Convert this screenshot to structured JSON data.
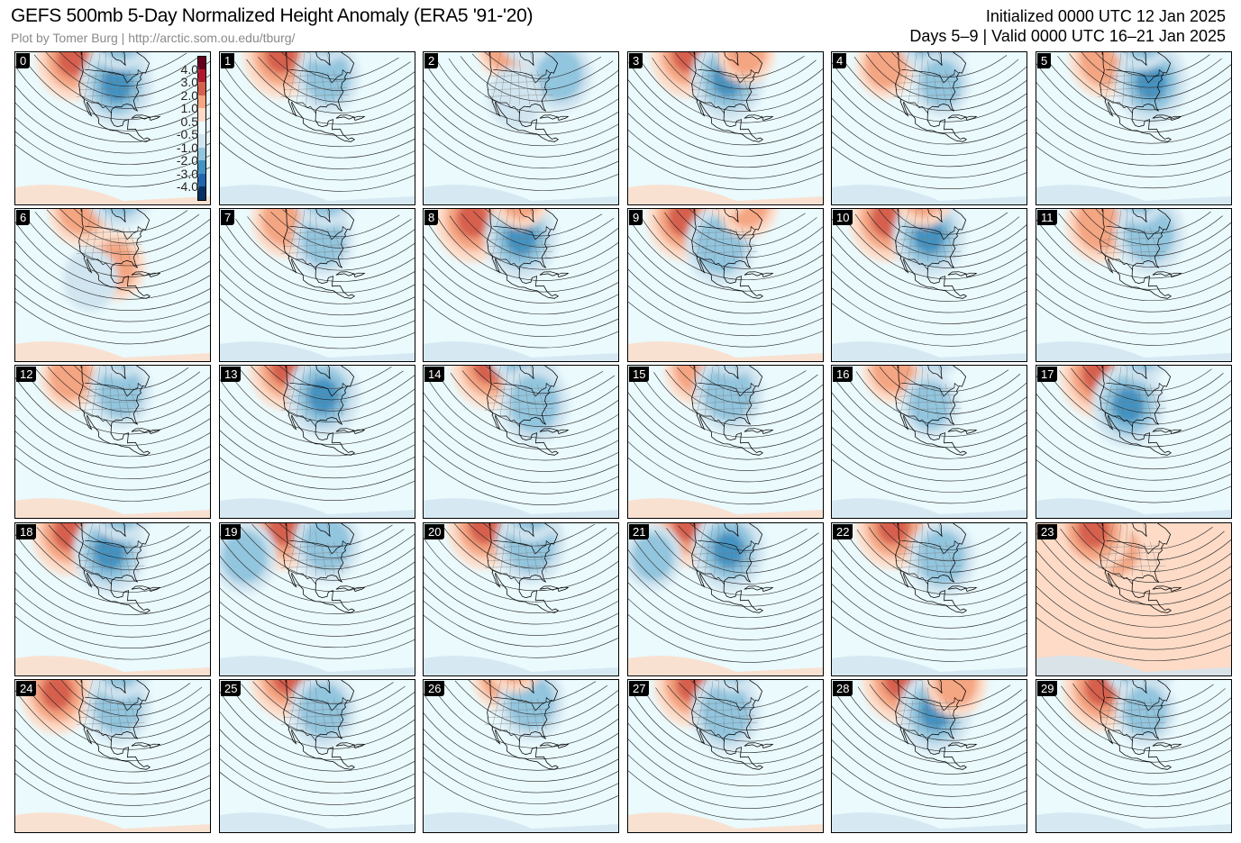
{
  "header": {
    "title": "GEFS 500mb 5-Day Normalized Height Anomaly (ERA5 '91-'20)",
    "credit": "Plot by Tomer Burg | http://arctic.som.ou.edu/tburg/",
    "init": "Initialized 0000 UTC 12 Jan 2025",
    "valid": "Days 5–9 | Valid 0000 UTC 16–21 Jan 2025"
  },
  "colorbar": {
    "labels": [
      "4.0",
      "3.0",
      "2.0",
      "1.0",
      "0.5",
      "-0.5",
      "-1.0",
      "-2.0",
      "-3.0",
      "-4.0"
    ],
    "colors": {
      "pos4": "#67001f",
      "pos3": "#b2182b",
      "pos2": "#d6604d",
      "pos1": "#f4a582",
      "pos05": "#fddbc7",
      "neutral": "#eafafd",
      "neg05": "#d1e5f0",
      "neg1": "#92c5de",
      "neg2": "#4393c3",
      "neg3": "#2166ac",
      "neg4": "#053061"
    }
  },
  "members": [
    {
      "label": "0",
      "anoms": [
        {
          "lon": -140,
          "lat": 52,
          "v": 2.0
        },
        {
          "lon": -92,
          "lat": 42,
          "v": -2.0
        },
        {
          "lon": -72,
          "lat": 70,
          "v": -1.5
        }
      ]
    },
    {
      "label": "1",
      "anoms": [
        {
          "lon": -138,
          "lat": 55,
          "v": 2.2
        },
        {
          "lon": -85,
          "lat": 46,
          "v": -1.4
        },
        {
          "lon": -70,
          "lat": 72,
          "v": -1.0
        }
      ]
    },
    {
      "label": "2",
      "anoms": [
        {
          "lon": -115,
          "lat": 63,
          "v": 1.0
        },
        {
          "lon": -60,
          "lat": 42,
          "v": -1.5
        },
        {
          "lon": -100,
          "lat": 35,
          "v": -0.8
        },
        {
          "lon": -75,
          "lat": 70,
          "v": -0.8
        }
      ]
    },
    {
      "label": "3",
      "anoms": [
        {
          "lon": -140,
          "lat": 55,
          "v": 2.2
        },
        {
          "lon": -93,
          "lat": 45,
          "v": -2.0
        },
        {
          "lon": -65,
          "lat": 58,
          "v": 1.0
        }
      ]
    },
    {
      "label": "4",
      "anoms": [
        {
          "lon": -140,
          "lat": 48,
          "v": 1.0
        },
        {
          "lon": -78,
          "lat": 70,
          "v": -2.0
        },
        {
          "lon": -85,
          "lat": 42,
          "v": -1.0
        }
      ]
    },
    {
      "label": "5",
      "anoms": [
        {
          "lon": -130,
          "lat": 55,
          "v": 1.8
        },
        {
          "lon": -80,
          "lat": 42,
          "v": -2.0
        },
        {
          "lon": -70,
          "lat": 70,
          "v": -1.5
        }
      ]
    },
    {
      "label": "6",
      "anoms": [
        {
          "lon": -135,
          "lat": 58,
          "v": 1.6
        },
        {
          "lon": -72,
          "lat": 70,
          "v": -1.6
        },
        {
          "lon": -95,
          "lat": 28,
          "v": 1.2
        },
        {
          "lon": -110,
          "lat": 20,
          "v": -0.8
        }
      ]
    },
    {
      "label": "7",
      "anoms": [
        {
          "lon": -130,
          "lat": 52,
          "v": 1.6
        },
        {
          "lon": -90,
          "lat": 42,
          "v": -1.2
        },
        {
          "lon": -70,
          "lat": 70,
          "v": -1.6
        }
      ]
    },
    {
      "label": "8",
      "anoms": [
        {
          "lon": -145,
          "lat": 48,
          "v": 2.2
        },
        {
          "lon": -95,
          "lat": 44,
          "v": -2.0
        },
        {
          "lon": -90,
          "lat": 68,
          "v": 1.0
        }
      ]
    },
    {
      "label": "9",
      "anoms": [
        {
          "lon": -140,
          "lat": 50,
          "v": 2.0
        },
        {
          "lon": -100,
          "lat": 40,
          "v": -1.8
        },
        {
          "lon": -60,
          "lat": 60,
          "v": 1.2
        },
        {
          "lon": -85,
          "lat": 75,
          "v": 1.0
        }
      ]
    },
    {
      "label": "10",
      "anoms": [
        {
          "lon": -140,
          "lat": 50,
          "v": 2.2
        },
        {
          "lon": -95,
          "lat": 45,
          "v": -2.0
        },
        {
          "lon": -100,
          "lat": 70,
          "v": 1.2
        }
      ]
    },
    {
      "label": "11",
      "anoms": [
        {
          "lon": -130,
          "lat": 50,
          "v": 1.8
        },
        {
          "lon": -80,
          "lat": 45,
          "v": -1.8
        },
        {
          "lon": -75,
          "lat": 70,
          "v": -1.0
        }
      ]
    },
    {
      "label": "12",
      "anoms": [
        {
          "lon": -140,
          "lat": 50,
          "v": 1.2
        },
        {
          "lon": -88,
          "lat": 45,
          "v": -1.3
        },
        {
          "lon": -70,
          "lat": 72,
          "v": -1.2
        }
      ]
    },
    {
      "label": "13",
      "anoms": [
        {
          "lon": -133,
          "lat": 57,
          "v": 2.2
        },
        {
          "lon": -90,
          "lat": 43,
          "v": -2.0
        }
      ]
    },
    {
      "label": "14",
      "anoms": [
        {
          "lon": -135,
          "lat": 58,
          "v": 2.3
        },
        {
          "lon": -80,
          "lat": 70,
          "v": -2.0
        },
        {
          "lon": -85,
          "lat": 38,
          "v": -1.8
        }
      ]
    },
    {
      "label": "15",
      "anoms": [
        {
          "lon": -130,
          "lat": 57,
          "v": 1.5
        },
        {
          "lon": -92,
          "lat": 45,
          "v": -1.8
        },
        {
          "lon": -70,
          "lat": 72,
          "v": -1.0
        }
      ]
    },
    {
      "label": "16",
      "anoms": [
        {
          "lon": -138,
          "lat": 55,
          "v": 1.2
        },
        {
          "lon": -95,
          "lat": 38,
          "v": -1.0
        },
        {
          "lon": -70,
          "lat": 72,
          "v": -1.0
        }
      ]
    },
    {
      "label": "17",
      "anoms": [
        {
          "lon": -135,
          "lat": 52,
          "v": 2.2
        },
        {
          "lon": -100,
          "lat": 38,
          "v": -2.0
        },
        {
          "lon": -70,
          "lat": 70,
          "v": -1.2
        }
      ]
    },
    {
      "label": "18",
      "anoms": [
        {
          "lon": -142,
          "lat": 50,
          "v": 2.2
        },
        {
          "lon": -98,
          "lat": 44,
          "v": -2.0
        },
        {
          "lon": -70,
          "lat": 70,
          "v": -1.5
        }
      ]
    },
    {
      "label": "19",
      "anoms": [
        {
          "lon": -135,
          "lat": 55,
          "v": 2.2
        },
        {
          "lon": -85,
          "lat": 48,
          "v": -1.6
        },
        {
          "lon": -150,
          "lat": 30,
          "v": -1.4
        }
      ]
    },
    {
      "label": "20",
      "anoms": [
        {
          "lon": -138,
          "lat": 55,
          "v": 2.2
        },
        {
          "lon": -85,
          "lat": 48,
          "v": -1.8
        },
        {
          "lon": -68,
          "lat": 70,
          "v": -1.6
        }
      ]
    },
    {
      "label": "21",
      "anoms": [
        {
          "lon": -140,
          "lat": 56,
          "v": 2.2
        },
        {
          "lon": -92,
          "lat": 45,
          "v": -2.0
        },
        {
          "lon": -150,
          "lat": 30,
          "v": -1.0
        }
      ]
    },
    {
      "label": "22",
      "anoms": [
        {
          "lon": -138,
          "lat": 55,
          "v": 2.2
        },
        {
          "lon": -85,
          "lat": 40,
          "v": -1.6
        }
      ]
    },
    {
      "label": "23",
      "anoms": [
        {
          "lon": -110,
          "lat": 45,
          "v": 1.2
        },
        {
          "lon": -140,
          "lat": 52,
          "v": 2.2
        }
      ]
    },
    {
      "label": "24",
      "anoms": [
        {
          "lon": -150,
          "lat": 45,
          "v": 2.0
        },
        {
          "lon": -90,
          "lat": 45,
          "v": -1.5
        },
        {
          "lon": -72,
          "lat": 70,
          "v": -1.6
        }
      ]
    },
    {
      "label": "25",
      "anoms": [
        {
          "lon": -135,
          "lat": 60,
          "v": 2.2
        },
        {
          "lon": -90,
          "lat": 43,
          "v": -1.6
        }
      ]
    },
    {
      "label": "26",
      "anoms": [
        {
          "lon": -120,
          "lat": 62,
          "v": 1.2
        },
        {
          "lon": -85,
          "lat": 47,
          "v": -1.6
        },
        {
          "lon": -100,
          "lat": 72,
          "v": 1.0
        }
      ]
    },
    {
      "label": "27",
      "anoms": [
        {
          "lon": -135,
          "lat": 55,
          "v": 2.2
        },
        {
          "lon": -95,
          "lat": 42,
          "v": -1.8
        },
        {
          "lon": -70,
          "lat": 72,
          "v": -1.2
        }
      ]
    },
    {
      "label": "28",
      "anoms": [
        {
          "lon": -132,
          "lat": 58,
          "v": 2.2
        },
        {
          "lon": -90,
          "lat": 42,
          "v": -2.0
        },
        {
          "lon": -60,
          "lat": 55,
          "v": 1.2
        }
      ]
    },
    {
      "label": "29",
      "anoms": [
        {
          "lon": -132,
          "lat": 53,
          "v": 2.2
        },
        {
          "lon": -72,
          "lat": 72,
          "v": -2.2
        },
        {
          "lon": -85,
          "lat": 42,
          "v": -1.2
        }
      ]
    }
  ]
}
